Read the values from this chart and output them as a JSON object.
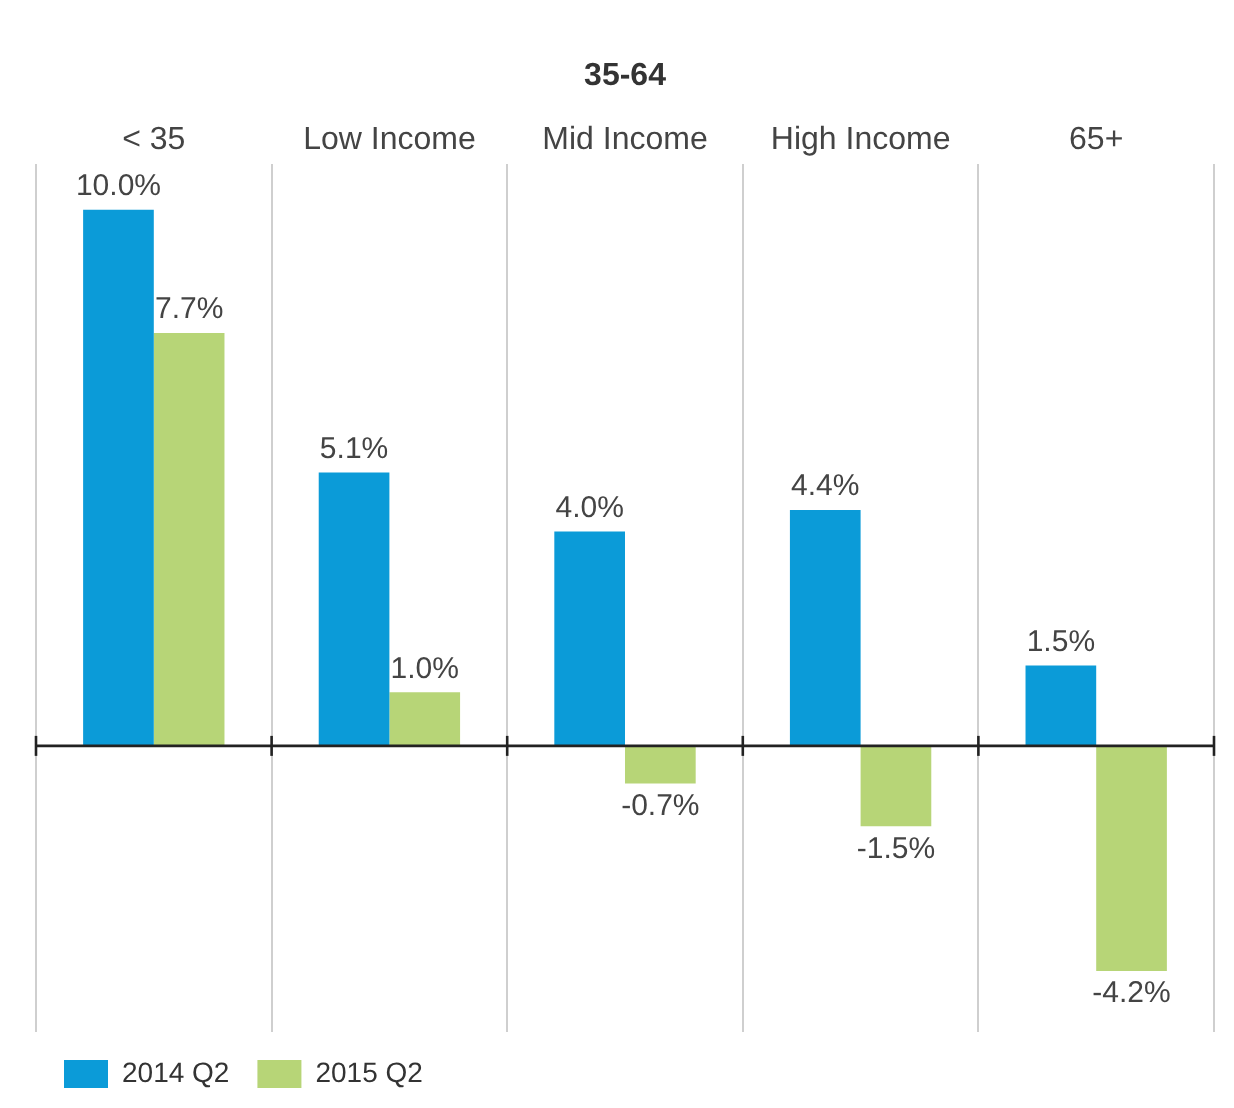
{
  "chart_data": {
    "type": "bar",
    "categories": [
      "< 35",
      "Low Income",
      "Mid Income",
      "High Income",
      "65+"
    ],
    "series": [
      {
        "name": "2014 Q2",
        "color": "#0b9bd8",
        "values": [
          10.0,
          5.1,
          4.0,
          4.4,
          1.5
        ],
        "value_labels": [
          "10.0%",
          "5.1%",
          "4.0%",
          "4.4%",
          "1.5%"
        ]
      },
      {
        "name": "2015 Q2",
        "color": "#b7d577",
        "values": [
          7.7,
          1.0,
          -0.7,
          -1.5,
          -4.2
        ],
        "value_labels": [
          "7.7%",
          "1.0%",
          "-0.7%",
          "-1.5%",
          "-4.2%"
        ]
      }
    ],
    "annotations": [
      "35-64"
    ],
    "grid": "x",
    "legend": "bottom left"
  }
}
